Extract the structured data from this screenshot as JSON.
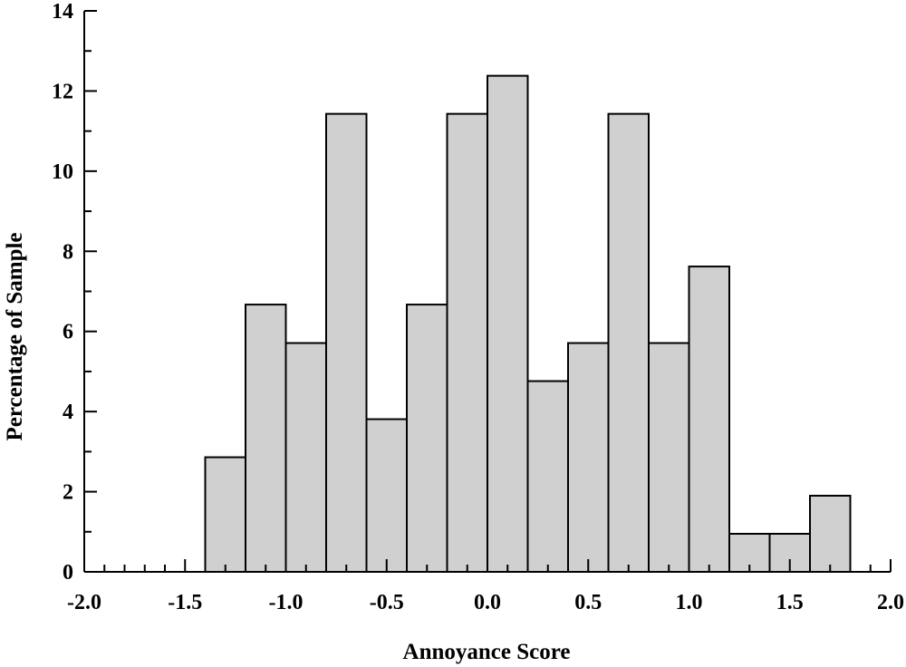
{
  "chart_data": {
    "type": "bar",
    "title": "",
    "xlabel": "Annoyance Score",
    "ylabel": "Percentage of Sample",
    "xlim": [
      -2.0,
      2.0
    ],
    "ylim": [
      0,
      14
    ],
    "x_ticks_major": [
      -2.0,
      -1.5,
      -1.0,
      -0.5,
      0.0,
      0.5,
      1.0,
      1.5,
      2.0
    ],
    "x_tick_labels": [
      "-2.0",
      "-1.5",
      "-1.0",
      "-0.5",
      "0.0",
      "0.5",
      "1.0",
      "1.5",
      "2.0"
    ],
    "x_minor_step": 0.1,
    "y_ticks_major": [
      0,
      2,
      4,
      6,
      8,
      10,
      12,
      14
    ],
    "y_tick_labels": [
      "0",
      "2",
      "4",
      "6",
      "8",
      "10",
      "12",
      "14"
    ],
    "y_minor_step": 1,
    "bin_width": 0.2,
    "bin_starts": [
      -1.4,
      -1.2,
      -1.0,
      -0.8,
      -0.6,
      -0.4,
      -0.2,
      0.0,
      0.2,
      0.4,
      0.6,
      0.8,
      1.0,
      1.2,
      1.4,
      1.6
    ],
    "values": [
      2.86,
      6.67,
      5.71,
      11.43,
      3.81,
      6.67,
      11.43,
      12.38,
      4.76,
      5.71,
      11.43,
      5.71,
      7.62,
      0.95,
      0.95,
      1.9
    ],
    "grid": false,
    "colors": {
      "bar_fill": "#d0d0d0",
      "bar_stroke": "#000000",
      "axis": "#000000"
    }
  }
}
